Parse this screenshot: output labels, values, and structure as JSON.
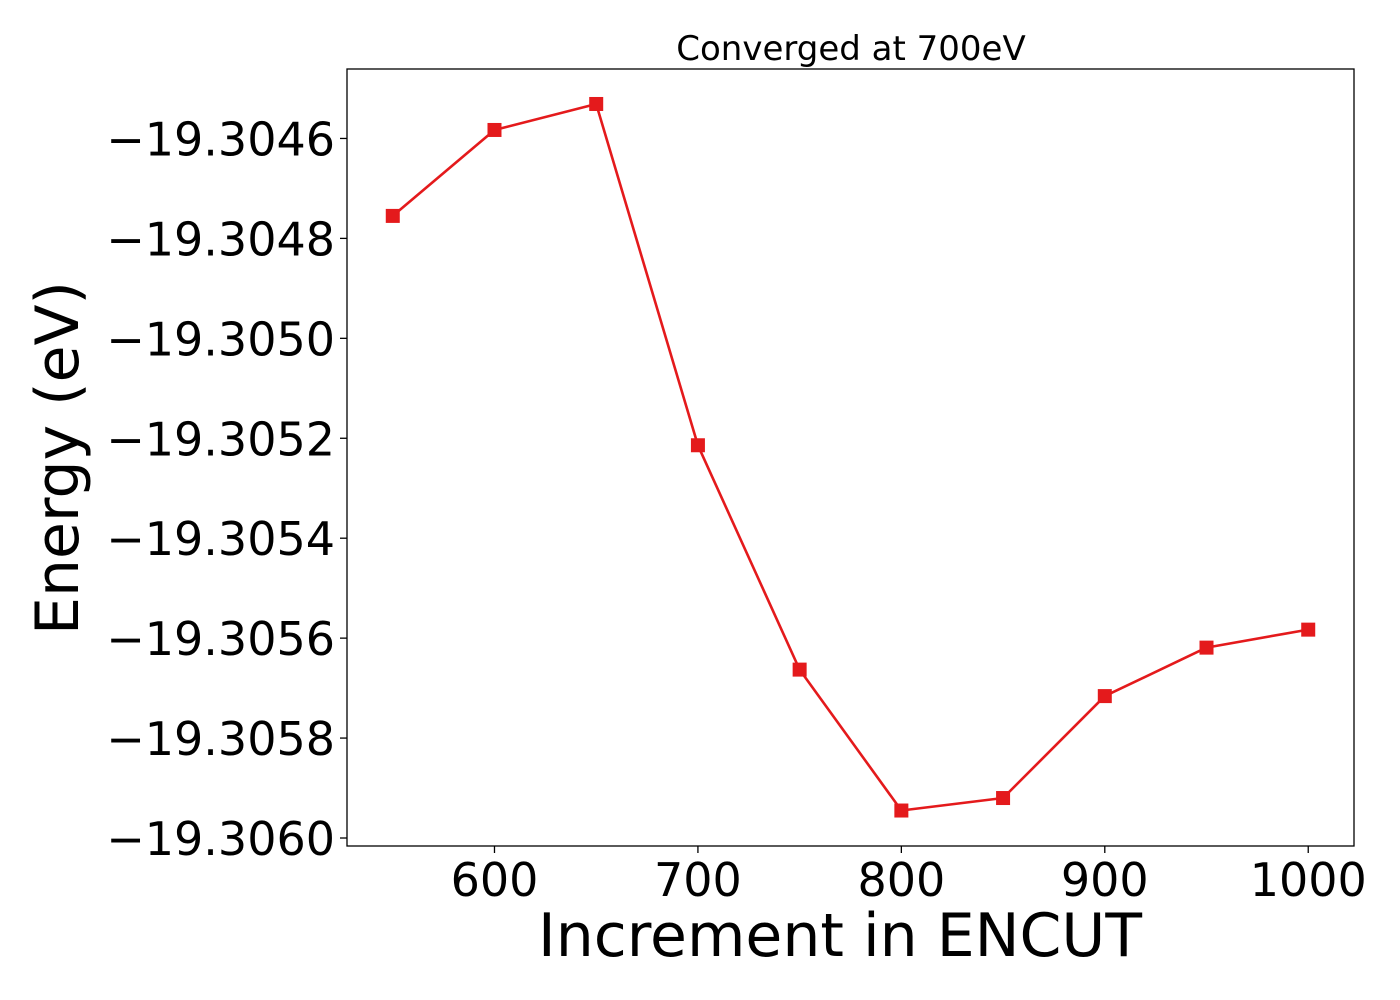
{
  "chart_data": {
    "type": "line",
    "title": "Converged at 700eV",
    "xlabel": "Increment in ENCUT",
    "ylabel": "Energy (eV)",
    "x": [
      550,
      600,
      650,
      700,
      750,
      800,
      850,
      900,
      950,
      1000
    ],
    "series": [
      {
        "values": [
          -19.304755,
          -19.304583,
          -19.304531,
          -19.305214,
          -19.305663,
          -19.305945,
          -19.30592,
          -19.305716,
          -19.305619,
          -19.305583
        ],
        "color": "#e41a1c",
        "marker": "square"
      }
    ],
    "xlim": [
      527.5,
      1022.5
    ],
    "ylim": [
      -19.306016,
      -19.304461
    ],
    "xticks": [
      600,
      700,
      800,
      900,
      1000
    ],
    "xtick_labels": [
      "600",
      "700",
      "800",
      "900",
      "1000"
    ],
    "yticks": [
      -19.3046,
      -19.3048,
      -19.305,
      -19.3052,
      -19.3054,
      -19.3056,
      -19.3058,
      -19.306
    ],
    "ytick_labels": [
      "−19.3046",
      "−19.3048",
      "−19.3050",
      "−19.3052",
      "−19.3054",
      "−19.3056",
      "−19.3058",
      "−19.3060"
    ],
    "grid": false,
    "legend": false
  }
}
